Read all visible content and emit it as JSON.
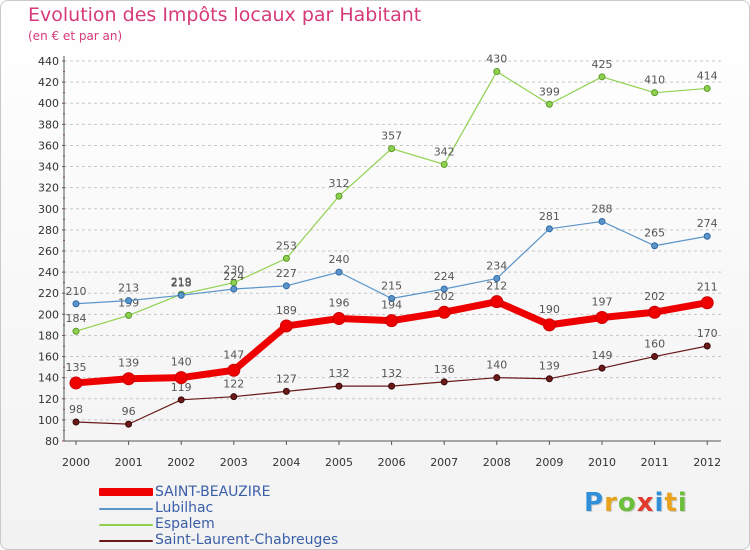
{
  "header": {
    "title": "Evolution des Impôts locaux par Habitant",
    "subtitle": "(en € et par an)"
  },
  "logo": {
    "letters": [
      "P",
      "r",
      "o",
      "x",
      "i",
      "t",
      "i"
    ],
    "colors": [
      "#2f8fd8",
      "#e8a21c",
      "#6cbf3a",
      "#e23b2e",
      "#2f8fd8",
      "#e8a21c",
      "#6cbf3a"
    ]
  },
  "chart_data": {
    "type": "line",
    "title": "Evolution des Impôts locaux par Habitant",
    "subtitle": "(en € et par an)",
    "x": [
      "2000",
      "2001",
      "2002",
      "2003",
      "2004",
      "2005",
      "2006",
      "2007",
      "2008",
      "2009",
      "2010",
      "2011",
      "2012"
    ],
    "ylim": [
      80,
      440
    ],
    "yticks": [
      80,
      100,
      120,
      140,
      160,
      180,
      200,
      220,
      240,
      260,
      280,
      300,
      320,
      340,
      360,
      380,
      400,
      420,
      440
    ],
    "grid": "horizontal dashed",
    "legend_position": "bottom-left",
    "series": [
      {
        "name": "Saint-Laurent-Chabreuges",
        "color": "#6b1a1a",
        "width": 1.2,
        "marker": 3,
        "labels": [
          "98",
          "96",
          "119",
          "122",
          "127",
          "132",
          "132",
          "136",
          "140",
          "139",
          "149",
          "160",
          "170"
        ],
        "values": [
          98,
          96,
          119,
          122,
          127,
          132,
          132,
          136,
          140,
          139,
          149,
          160,
          170
        ]
      },
      {
        "name": "Espalem",
        "color": "#8fd14f",
        "width": 1.2,
        "marker": 3,
        "labels": [
          "184",
          "199",
          "219",
          "230",
          "253",
          "312",
          "357",
          "342",
          "430",
          "399",
          "425",
          "410",
          "414"
        ],
        "values": [
          184,
          199,
          219,
          230,
          253,
          312,
          357,
          342,
          430,
          399,
          425,
          410,
          414
        ]
      },
      {
        "name": "Lubilhac",
        "color": "#5b95c9",
        "width": 1.2,
        "marker": 3,
        "labels": [
          "210",
          "213",
          "218",
          "224",
          "227",
          "240",
          "215",
          "224",
          "234",
          "281",
          "288",
          "265",
          "274"
        ],
        "values": [
          210,
          213,
          218,
          224,
          227,
          240,
          215,
          224,
          234,
          281,
          288,
          265,
          274
        ]
      },
      {
        "name": "SAINT-BEAUZIRE",
        "color": "#ee0000",
        "width": 7,
        "marker": 6,
        "labels": [
          "135",
          "139",
          "140",
          "147",
          "189",
          "196",
          "194",
          "202",
          "212",
          "190",
          "197",
          "202",
          "211"
        ],
        "values": [
          135,
          139,
          140,
          147,
          189,
          196,
          194,
          202,
          212,
          190,
          197,
          202,
          211
        ]
      }
    ],
    "legend": [
      {
        "name": "SAINT-BEAUZIRE",
        "color": "#ee0000",
        "width": 8
      },
      {
        "name": "Lubilhac",
        "color": "#5b95c9",
        "width": 2
      },
      {
        "name": "Espalem",
        "color": "#8fd14f",
        "width": 2
      },
      {
        "name": "Saint-Laurent-Chabreuges",
        "color": "#6b1a1a",
        "width": 2
      }
    ]
  }
}
